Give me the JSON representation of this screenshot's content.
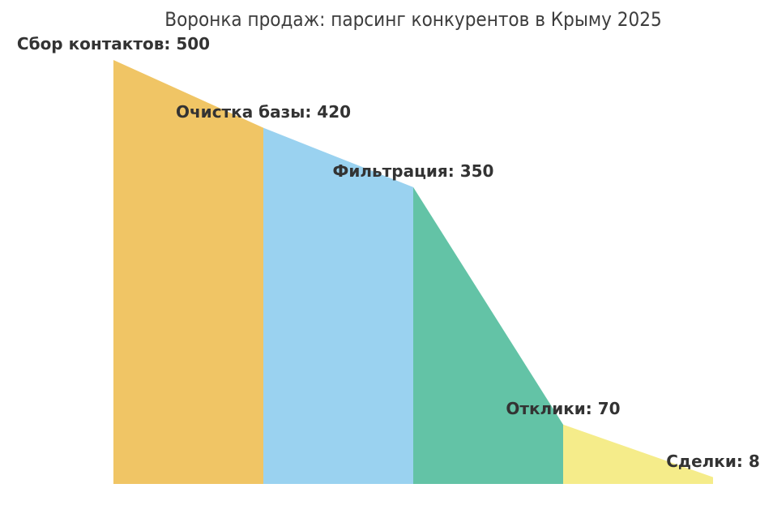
{
  "title": "Воронка продаж: парсинг конкурентов в Крыму 2025",
  "chart_data": {
    "type": "area",
    "subtype": "funnel",
    "title": "Воронка продаж: парсинг конкурентов в Крыму 2025",
    "stages": [
      {
        "label": "Сбор контактов",
        "value": 500,
        "display": "Сбор контактов: 500"
      },
      {
        "label": "Очистка базы",
        "value": 420,
        "display": "Очистка базы: 420"
      },
      {
        "label": "Фильтрация",
        "value": 350,
        "display": "Фильтрация: 350"
      },
      {
        "label": "Отклики",
        "value": 70,
        "display": "Отклики: 70"
      },
      {
        "label": "Сделки",
        "value": 8,
        "display": "Сделки: 8"
      }
    ],
    "segment_colors": [
      "#F0C565",
      "#9AD2F0",
      "#63C3A6",
      "#F5EC8A"
    ],
    "ylim": [
      0,
      500
    ],
    "grid": false,
    "legend": "none",
    "axes_visible": false,
    "background": "#FFFFFF",
    "label_color": "#333333",
    "title_color": "#3D3D3D"
  }
}
